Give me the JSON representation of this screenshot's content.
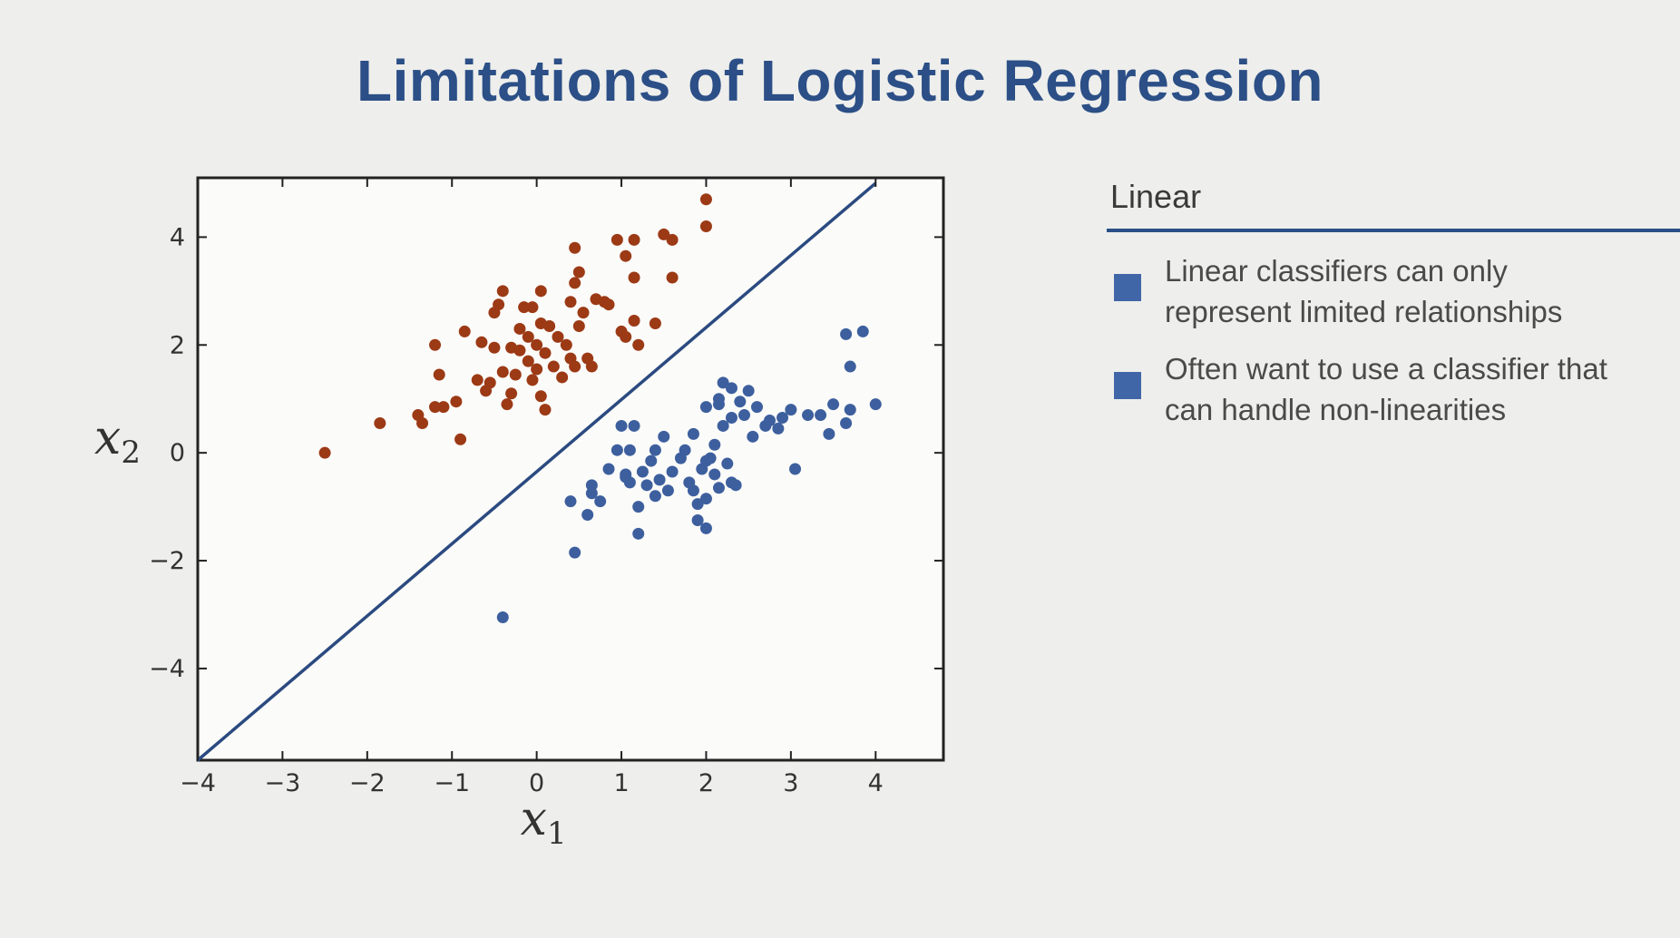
{
  "slide": {
    "title": "Limitations of Logistic Regression"
  },
  "panel": {
    "header": "Linear",
    "bullets": [
      "Linear classifiers can only represent limited relationships",
      "Often want to use a classifier that can handle non-linearities"
    ]
  },
  "colors": {
    "title": "#2b4f86",
    "class_a": "#9c3a16",
    "class_b": "#3d5f9e",
    "decision_line": "#2b4a80",
    "bullet_marker": "#4166a8"
  },
  "chart_data": {
    "type": "scatter",
    "xlabel": "x",
    "xlabel_sub": "1",
    "ylabel": "x",
    "ylabel_sub": "2",
    "xlim": [
      -4,
      4.8
    ],
    "ylim": [
      -5.7,
      5.1
    ],
    "x_ticks": [
      -4,
      -3,
      -2,
      -1,
      0,
      1,
      2,
      3,
      4
    ],
    "x_tick_labels": [
      "−4",
      "−3",
      "−2",
      "−1",
      "0",
      "1",
      "2",
      "3",
      "4"
    ],
    "y_ticks": [
      -4,
      -2,
      0,
      2,
      4
    ],
    "y_tick_labels": [
      "−4",
      "−2",
      "0",
      "2",
      "4"
    ],
    "grid": false,
    "decision_boundary": {
      "from": [
        -4,
        -5.7
      ],
      "to": [
        4,
        5.0
      ]
    },
    "series": [
      {
        "points": [
          [
            -2.5,
            0.0
          ],
          [
            -1.85,
            0.55
          ],
          [
            -1.4,
            0.7
          ],
          [
            -1.35,
            0.55
          ],
          [
            -1.2,
            2.0
          ],
          [
            -1.15,
            1.45
          ],
          [
            -1.2,
            0.85
          ],
          [
            -1.1,
            0.85
          ],
          [
            -0.95,
            0.95
          ],
          [
            -0.9,
            0.25
          ],
          [
            -0.85,
            2.25
          ],
          [
            -0.7,
            1.35
          ],
          [
            -0.65,
            2.05
          ],
          [
            -0.6,
            1.15
          ],
          [
            -0.55,
            1.3
          ],
          [
            -0.5,
            1.95
          ],
          [
            -0.5,
            2.6
          ],
          [
            -0.45,
            2.75
          ],
          [
            -0.4,
            3.0
          ],
          [
            -0.4,
            1.5
          ],
          [
            -0.35,
            0.9
          ],
          [
            -0.3,
            1.1
          ],
          [
            -0.3,
            1.95
          ],
          [
            -0.25,
            1.45
          ],
          [
            -0.2,
            2.3
          ],
          [
            -0.15,
            2.7
          ],
          [
            -0.1,
            2.15
          ],
          [
            -0.1,
            1.7
          ],
          [
            -0.05,
            2.7
          ],
          [
            -0.05,
            1.35
          ],
          [
            0.0,
            2.0
          ],
          [
            0.0,
            1.55
          ],
          [
            0.05,
            3.0
          ],
          [
            0.05,
            2.4
          ],
          [
            0.05,
            1.05
          ],
          [
            0.1,
            1.85
          ],
          [
            0.1,
            0.8
          ],
          [
            0.15,
            2.35
          ],
          [
            0.2,
            1.6
          ],
          [
            0.25,
            2.15
          ],
          [
            0.3,
            1.4
          ],
          [
            0.35,
            2.0
          ],
          [
            0.4,
            1.75
          ],
          [
            0.4,
            2.8
          ],
          [
            0.45,
            3.15
          ],
          [
            0.45,
            1.6
          ],
          [
            0.5,
            3.35
          ],
          [
            0.5,
            2.35
          ],
          [
            0.55,
            2.6
          ],
          [
            0.6,
            1.75
          ],
          [
            0.65,
            1.6
          ],
          [
            0.7,
            2.85
          ],
          [
            0.8,
            2.8
          ],
          [
            0.85,
            2.75
          ],
          [
            0.95,
            3.95
          ],
          [
            1.0,
            2.25
          ],
          [
            1.05,
            3.65
          ],
          [
            1.05,
            2.15
          ],
          [
            1.15,
            3.95
          ],
          [
            1.15,
            2.45
          ],
          [
            1.15,
            3.25
          ],
          [
            1.2,
            2.0
          ],
          [
            1.4,
            2.4
          ],
          [
            1.5,
            4.05
          ],
          [
            1.6,
            3.95
          ],
          [
            1.6,
            3.25
          ],
          [
            2.0,
            4.7
          ],
          [
            2.0,
            4.2
          ],
          [
            0.45,
            3.8
          ],
          [
            -0.2,
            1.9
          ]
        ]
      },
      {
        "points": [
          [
            -0.4,
            -3.05
          ],
          [
            0.4,
            -0.9
          ],
          [
            0.45,
            -1.85
          ],
          [
            0.6,
            -1.15
          ],
          [
            0.65,
            -0.75
          ],
          [
            0.65,
            -0.6
          ],
          [
            0.75,
            -0.9
          ],
          [
            0.85,
            -0.3
          ],
          [
            0.95,
            0.05
          ],
          [
            1.0,
            0.5
          ],
          [
            1.05,
            -0.4
          ],
          [
            1.1,
            -0.55
          ],
          [
            1.1,
            0.05
          ],
          [
            1.15,
            0.5
          ],
          [
            1.2,
            -1.5
          ],
          [
            1.2,
            -1.0
          ],
          [
            1.25,
            -0.35
          ],
          [
            1.3,
            -0.6
          ],
          [
            1.35,
            -0.15
          ],
          [
            1.4,
            0.05
          ],
          [
            1.4,
            -0.8
          ],
          [
            1.45,
            -0.5
          ],
          [
            1.5,
            0.3
          ],
          [
            1.55,
            -0.7
          ],
          [
            1.6,
            -0.35
          ],
          [
            1.7,
            -0.1
          ],
          [
            1.75,
            0.05
          ],
          [
            1.8,
            -0.55
          ],
          [
            1.85,
            0.35
          ],
          [
            1.85,
            -0.7
          ],
          [
            1.9,
            -0.95
          ],
          [
            1.9,
            -1.25
          ],
          [
            1.95,
            -0.3
          ],
          [
            2.0,
            -0.15
          ],
          [
            2.0,
            -0.85
          ],
          [
            2.0,
            0.85
          ],
          [
            2.0,
            -1.4
          ],
          [
            2.05,
            -0.1
          ],
          [
            2.1,
            0.15
          ],
          [
            2.1,
            -0.4
          ],
          [
            2.15,
            -0.65
          ],
          [
            2.15,
            0.9
          ],
          [
            2.2,
            1.3
          ],
          [
            2.2,
            0.5
          ],
          [
            2.25,
            -0.2
          ],
          [
            2.3,
            1.2
          ],
          [
            2.3,
            0.65
          ],
          [
            2.35,
            -0.6
          ],
          [
            2.4,
            0.95
          ],
          [
            2.45,
            0.7
          ],
          [
            2.5,
            1.15
          ],
          [
            2.55,
            0.3
          ],
          [
            2.6,
            0.85
          ],
          [
            2.7,
            0.5
          ],
          [
            2.75,
            0.6
          ],
          [
            2.85,
            0.45
          ],
          [
            2.9,
            0.65
          ],
          [
            3.0,
            0.8
          ],
          [
            3.05,
            -0.3
          ],
          [
            3.2,
            0.7
          ],
          [
            3.35,
            0.7
          ],
          [
            3.45,
            0.35
          ],
          [
            3.5,
            0.9
          ],
          [
            3.65,
            0.55
          ],
          [
            3.65,
            2.2
          ],
          [
            3.7,
            1.6
          ],
          [
            3.7,
            0.8
          ],
          [
            3.85,
            2.25
          ],
          [
            4.0,
            0.9
          ],
          [
            2.15,
            1.0
          ],
          [
            1.05,
            -0.45
          ],
          [
            2.3,
            -0.55
          ]
        ]
      }
    ]
  }
}
